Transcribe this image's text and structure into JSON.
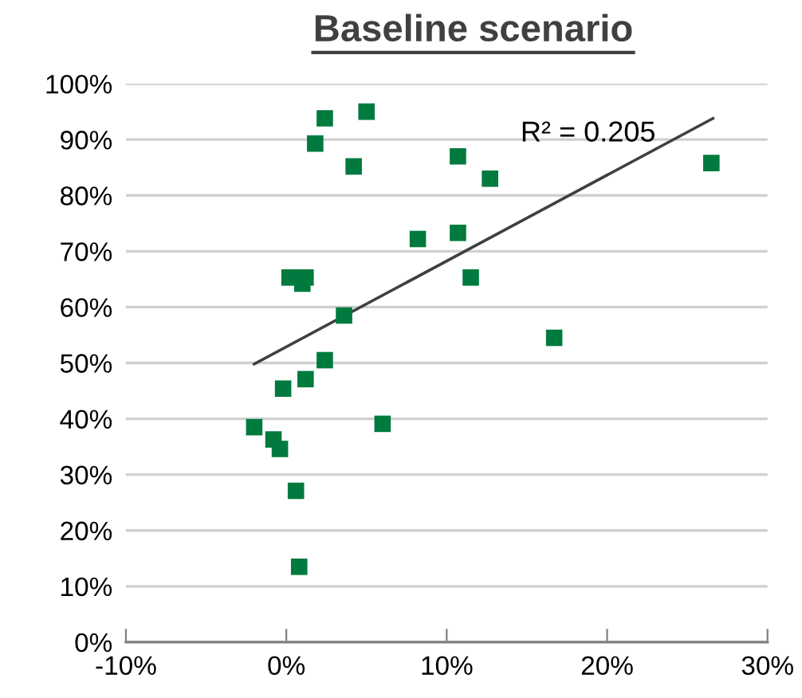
{
  "chart_data": {
    "type": "scatter",
    "title": "Baseline scenario",
    "xlim": [
      -10,
      30
    ],
    "ylim": [
      0,
      100
    ],
    "xticks": [
      {
        "value": -10,
        "label": "-10%"
      },
      {
        "value": 0,
        "label": "0%"
      },
      {
        "value": 10,
        "label": "10%"
      },
      {
        "value": 20,
        "label": "20%"
      },
      {
        "value": 30,
        "label": "30%"
      }
    ],
    "yticks": [
      {
        "value": 0,
        "label": "0%"
      },
      {
        "value": 10,
        "label": "10%"
      },
      {
        "value": 20,
        "label": "20%"
      },
      {
        "value": 30,
        "label": "30%"
      },
      {
        "value": 40,
        "label": "40%"
      },
      {
        "value": 50,
        "label": "50%"
      },
      {
        "value": 60,
        "label": "60%"
      },
      {
        "value": 70,
        "label": "70%"
      },
      {
        "value": 80,
        "label": "80%"
      },
      {
        "value": 90,
        "label": "90%"
      },
      {
        "value": 100,
        "label": "100%"
      }
    ],
    "grid": "y",
    "legend": false,
    "series": [
      {
        "marker": "square",
        "color": "#007a3e",
        "x": [
          2.4,
          5.0,
          1.8,
          4.2,
          10.7,
          12.7,
          26.5,
          8.2,
          10.7,
          11.5,
          0.2,
          1.2,
          1.0,
          3.6,
          16.7,
          2.4,
          1.2,
          -0.2,
          6.0,
          -2.0,
          -0.8,
          -0.4,
          0.6,
          0.8
        ],
        "values": [
          93.8,
          95,
          89.3,
          85.2,
          87,
          83,
          85.8,
          72.2,
          73.3,
          65.3,
          65.3,
          65.3,
          64.2,
          58.5,
          54.5,
          50.5,
          47.1,
          45.4,
          39.1,
          38.5,
          36.3,
          34.6,
          27.1,
          13.5
        ]
      },
      {
        "type": "line",
        "marker": "none",
        "color": "#404040",
        "x": [
          -2.0,
          26.6
        ],
        "values": [
          49.8,
          93.8
        ]
      }
    ],
    "annotations": [
      "R² = 0.205"
    ]
  }
}
